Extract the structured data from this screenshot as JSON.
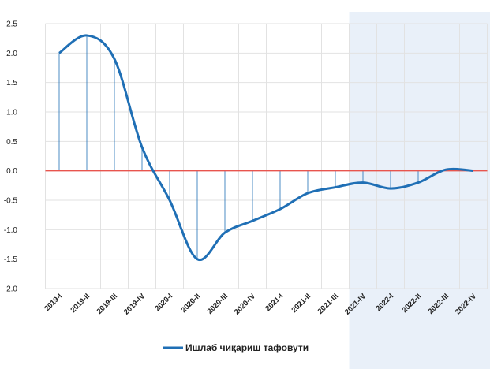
{
  "chart_data": {
    "type": "line",
    "categories": [
      "2019-I",
      "2019-II",
      "2019-III",
      "2019-IV",
      "2020-I",
      "2020-II",
      "2020-III",
      "2020-IV",
      "2021-I",
      "2021-II",
      "2021-III",
      "2021-IV",
      "2022-I",
      "2022-II",
      "2022-III",
      "2022-IV"
    ],
    "series": [
      {
        "name": "Ишлаб чиқариш тафовути",
        "color": "#1f6fb5",
        "values": [
          2.0,
          2.3,
          1.9,
          0.4,
          -0.5,
          -1.5,
          -1.05,
          -0.85,
          -0.65,
          -0.38,
          -0.28,
          -0.2,
          -0.3,
          -0.2,
          0.02,
          0.0
        ]
      }
    ],
    "ylim": [
      -2.0,
      2.5
    ],
    "yticks": [
      2.5,
      {
        "value": 2,
        "label": "2.0"
      },
      1.5,
      {
        "value": 1,
        "label": "1.0"
      },
      0.5,
      {
        "value": 0,
        "label": "0.0"
      },
      -0.5,
      {
        "value": -1,
        "label": "-1.0"
      },
      -1.5,
      {
        "value": -2,
        "label": "-2.0"
      }
    ],
    "grid": true,
    "zero_line_color": "#e8554e",
    "shade_color": "#e9f0f9",
    "forecast_start_index": 11,
    "legend": "bottom"
  }
}
